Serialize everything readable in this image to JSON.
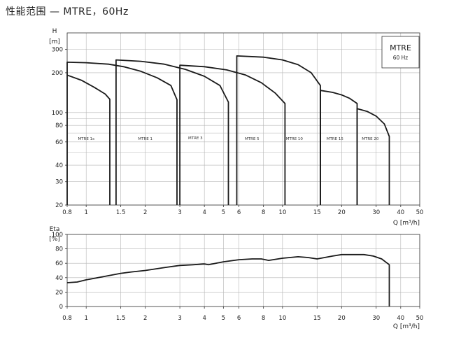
{
  "page": {
    "title": "性能范围 — MTRE，60Hz"
  },
  "chart_data": [
    {
      "type": "line",
      "name": "head",
      "ylabel_top": "H",
      "ylabel_unit": "[m]",
      "xlabel": "Q [m³/h]",
      "x_scale": "log",
      "y_scale": "log",
      "xlim": [
        0.8,
        50
      ],
      "ylim": [
        20,
        400
      ],
      "x_ticks": [
        "0.8",
        "1",
        "1.5",
        "2",
        "3",
        "4",
        "5",
        "6",
        "8",
        "10",
        "15",
        "20",
        "30",
        "40",
        "50"
      ],
      "y_ticks": [
        "20",
        "30",
        "40",
        "60",
        "80",
        "100",
        "200",
        "300"
      ],
      "legend": {
        "title": "MTRE",
        "subtitle": "60 Hz"
      },
      "regions": [
        {
          "label": "MTRE 1s",
          "label_x": 1.0,
          "label_y": 62,
          "outline": [
            [
              0.8,
              20
            ],
            [
              0.8,
              240
            ],
            [
              1.0,
              238
            ],
            [
              1.3,
              232
            ],
            [
              1.55,
              222
            ],
            [
              1.9,
              205
            ],
            [
              2.3,
              183
            ],
            [
              2.7,
              160
            ],
            [
              2.9,
              125
            ],
            [
              2.9,
              20
            ]
          ],
          "inner": [
            [
              0.8,
              192
            ],
            [
              0.95,
              175
            ],
            [
              1.1,
              155
            ],
            [
              1.25,
              138
            ],
            [
              1.32,
              126
            ],
            [
              1.32,
              20
            ]
          ]
        },
        {
          "label": "MTRE 1",
          "label_x": 2.0,
          "label_y": 62,
          "outline": [
            [
              1.42,
              20
            ],
            [
              1.42,
              250
            ],
            [
              1.9,
              244
            ],
            [
              2.5,
              232
            ],
            [
              3.2,
              212
            ],
            [
              4.0,
              188
            ],
            [
              4.8,
              160
            ],
            [
              5.3,
              120
            ],
            [
              5.3,
              20
            ]
          ]
        },
        {
          "label": "MTRE 3",
          "label_x": 3.6,
          "label_y": 63,
          "outline": [
            [
              3.0,
              20
            ],
            [
              3.0,
              228
            ],
            [
              4.0,
              222
            ],
            [
              5.2,
              210
            ],
            [
              6.5,
              192
            ],
            [
              7.8,
              168
            ],
            [
              9.2,
              140
            ],
            [
              10.3,
              117
            ],
            [
              10.3,
              20
            ]
          ]
        },
        {
          "label": "MTRE 5",
          "label_x": 7.0,
          "label_y": 62,
          "outline": [
            [
              5.85,
              20
            ],
            [
              5.85,
              268
            ],
            [
              8.0,
              262
            ],
            [
              10.0,
              250
            ],
            [
              12.0,
              230
            ],
            [
              14.0,
              200
            ],
            [
              15.6,
              160
            ],
            [
              15.6,
              20
            ]
          ]
        },
        {
          "label": "MTRE 10",
          "label_x": 11.5,
          "label_y": 62,
          "outline": [
            [
              15.6,
              20
            ],
            [
              15.6,
              147
            ],
            [
              18.0,
              142
            ],
            [
              20.0,
              136
            ],
            [
              22.0,
              128
            ],
            [
              24.0,
              117
            ],
            [
              24.0,
              20
            ]
          ]
        },
        {
          "label": "MTRE 15",
          "label_x": 18.5,
          "label_y": 62,
          "outline": [
            [
              24.0,
              20
            ],
            [
              24.0,
              107
            ],
            [
              27.0,
              102
            ],
            [
              30.0,
              94
            ],
            [
              33.0,
              82
            ],
            [
              35.0,
              66
            ],
            [
              35.0,
              20
            ]
          ]
        },
        {
          "label": "MTRE 20",
          "label_x": 28.0,
          "label_y": 62,
          "outline": []
        }
      ]
    },
    {
      "type": "line",
      "name": "efficiency",
      "ylabel_top": "Eta",
      "ylabel_unit": "[%]",
      "xlabel": "Q [m³/h]",
      "x_scale": "log",
      "xlim": [
        0.8,
        50
      ],
      "ylim": [
        0,
        100
      ],
      "x_ticks": [
        "0.8",
        "1",
        "1.5",
        "2",
        "3",
        "4",
        "5",
        "6",
        "8",
        "10",
        "15",
        "20",
        "30",
        "40",
        "50"
      ],
      "y_ticks": [
        "0",
        "20",
        "40",
        "60",
        "80",
        "100"
      ],
      "series": [
        {
          "x": [
            0.8,
            0.9,
            1.0,
            1.2,
            1.5,
            1.7,
            2.0,
            2.5,
            3.0,
            3.5,
            4.0,
            4.2,
            5.0,
            6.0,
            7.0,
            7.8,
            8.5,
            10.0,
            12.0,
            13.5,
            15.0,
            18.0,
            20.0,
            23.0,
            26.0,
            29.0,
            32.0,
            35.0,
            35.0
          ],
          "y": [
            33,
            34,
            37,
            41,
            46,
            48,
            50,
            54,
            57,
            58,
            59,
            58,
            62,
            65,
            66,
            66,
            64,
            67,
            69,
            68,
            66,
            70,
            72,
            72,
            72,
            70,
            66,
            58,
            0
          ]
        }
      ]
    }
  ]
}
